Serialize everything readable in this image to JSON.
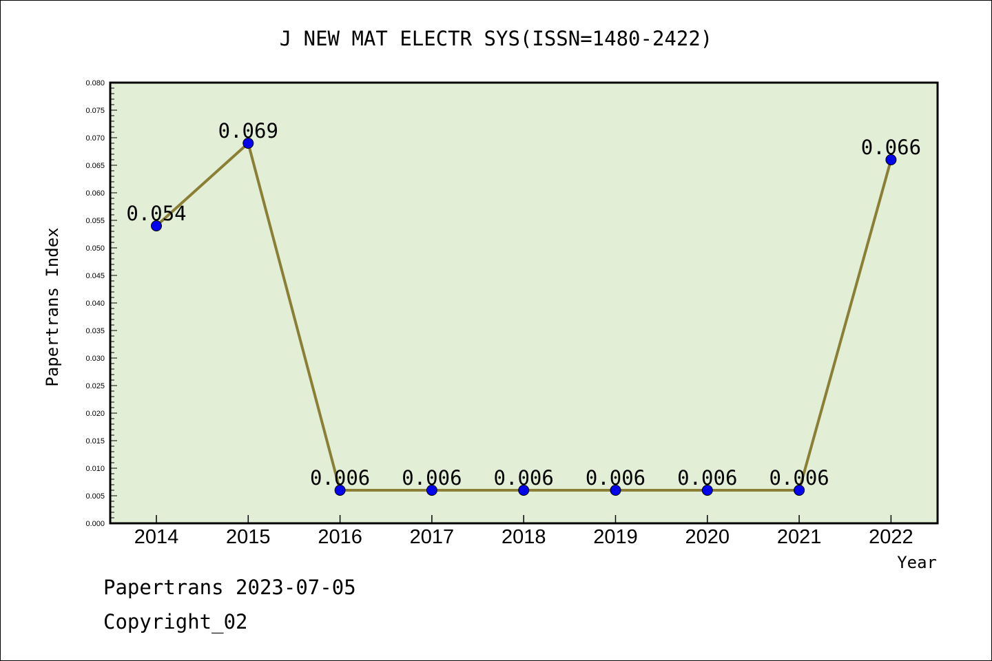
{
  "chart_data": {
    "type": "line",
    "title": "J NEW MAT ELECTR SYS(ISSN=1480-2422)",
    "xlabel": "Year",
    "ylabel": "Papertrans Index",
    "categories": [
      "2014",
      "2015",
      "2016",
      "2017",
      "2018",
      "2019",
      "2020",
      "2021",
      "2022"
    ],
    "values": [
      0.054,
      0.069,
      0.006,
      0.006,
      0.006,
      0.006,
      0.006,
      0.006,
      0.066
    ],
    "data_labels": [
      "0.054",
      "0.069",
      "0.006",
      "0.006",
      "0.006",
      "0.006",
      "0.006",
      "0.006",
      "0.066"
    ],
    "ylim": [
      0,
      0.08
    ],
    "yticks": [
      "0.000",
      "0.005",
      "0.010",
      "0.015",
      "0.020",
      "0.025",
      "0.030",
      "0.035",
      "0.040",
      "0.045",
      "0.050",
      "0.055",
      "0.060",
      "0.065",
      "0.070",
      "0.075",
      "0.080"
    ],
    "grid": false,
    "colors": {
      "plot_background": "#e2efd6",
      "line": "#8b7e35",
      "marker": "#0000ee"
    }
  },
  "footer": {
    "source": "Papertrans 2023-07-05",
    "copyright": "Copyright_02"
  }
}
